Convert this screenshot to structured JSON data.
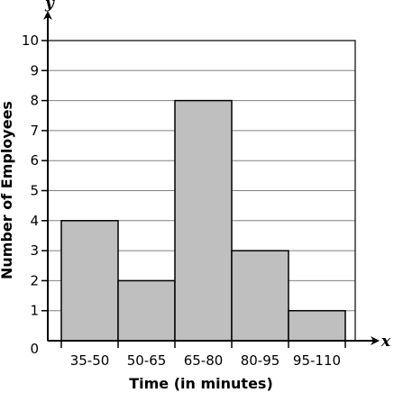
{
  "chart_data": {
    "type": "bar",
    "categories": [
      "35-50",
      "50-65",
      "65-80",
      "80-95",
      "95-110"
    ],
    "values": [
      4,
      2,
      8,
      3,
      1
    ],
    "xlabel": "Time (in minutes)",
    "ylabel": "Number of Employees",
    "x_var": "x",
    "y_var": "y",
    "ylim": [
      0,
      10
    ],
    "yticks": [
      "0",
      "1",
      "2",
      "3",
      "4",
      "5",
      "6",
      "7",
      "8",
      "9",
      "10"
    ],
    "grid": true,
    "bar_color": "#bfbfbf",
    "bar_stroke": "#000000"
  }
}
